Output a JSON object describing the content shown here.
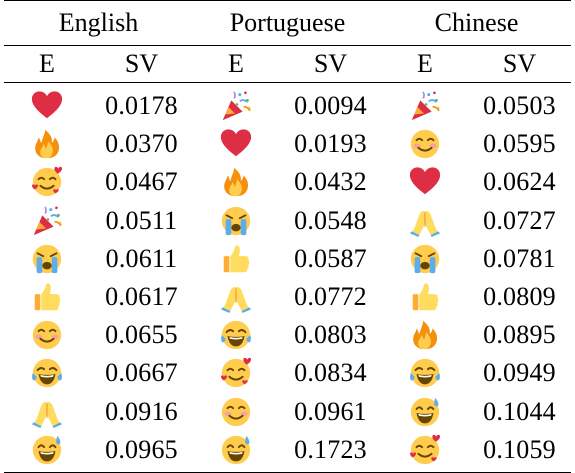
{
  "header": {
    "languages": [
      "English",
      "Portuguese",
      "Chinese"
    ],
    "sub_emoji": "E",
    "sub_sv": "SV"
  },
  "rows": [
    {
      "en": {
        "emoji": "red-heart",
        "sv": "0.0178"
      },
      "pt": {
        "emoji": "party-popper",
        "sv": "0.0094"
      },
      "zh": {
        "emoji": "party-popper",
        "sv": "0.0503"
      }
    },
    {
      "en": {
        "emoji": "fire",
        "sv": "0.0370"
      },
      "pt": {
        "emoji": "red-heart",
        "sv": "0.0193"
      },
      "zh": {
        "emoji": "smiling-face",
        "sv": "0.0595"
      }
    },
    {
      "en": {
        "emoji": "smiling-face-with-hearts",
        "sv": "0.0467"
      },
      "pt": {
        "emoji": "fire",
        "sv": "0.0432"
      },
      "zh": {
        "emoji": "red-heart",
        "sv": "0.0624"
      }
    },
    {
      "en": {
        "emoji": "party-popper",
        "sv": "0.0511"
      },
      "pt": {
        "emoji": "loudly-crying-face",
        "sv": "0.0548"
      },
      "zh": {
        "emoji": "folded-hands",
        "sv": "0.0727"
      }
    },
    {
      "en": {
        "emoji": "loudly-crying-face",
        "sv": "0.0611"
      },
      "pt": {
        "emoji": "thumbs-up",
        "sv": "0.0587"
      },
      "zh": {
        "emoji": "loudly-crying-face",
        "sv": "0.0781"
      }
    },
    {
      "en": {
        "emoji": "thumbs-up",
        "sv": "0.0617"
      },
      "pt": {
        "emoji": "folded-hands",
        "sv": "0.0772"
      },
      "zh": {
        "emoji": "thumbs-up",
        "sv": "0.0809"
      }
    },
    {
      "en": {
        "emoji": "smiling-face",
        "sv": "0.0655"
      },
      "pt": {
        "emoji": "face-with-tears-of-joy",
        "sv": "0.0803"
      },
      "zh": {
        "emoji": "fire",
        "sv": "0.0895"
      }
    },
    {
      "en": {
        "emoji": "face-with-tears-of-joy",
        "sv": "0.0667"
      },
      "pt": {
        "emoji": "smiling-face-with-hearts",
        "sv": "0.0834"
      },
      "zh": {
        "emoji": "face-with-tears-of-joy",
        "sv": "0.0949"
      }
    },
    {
      "en": {
        "emoji": "folded-hands",
        "sv": "0.0916"
      },
      "pt": {
        "emoji": "smiling-face",
        "sv": "0.0961"
      },
      "zh": {
        "emoji": "grinning-face-with-sweat",
        "sv": "0.1044"
      }
    },
    {
      "en": {
        "emoji": "grinning-face-with-sweat",
        "sv": "0.0965"
      },
      "pt": {
        "emoji": "grinning-face-with-sweat",
        "sv": "0.1723"
      },
      "zh": {
        "emoji": "smiling-face-with-hearts",
        "sv": "0.1059"
      }
    }
  ]
}
